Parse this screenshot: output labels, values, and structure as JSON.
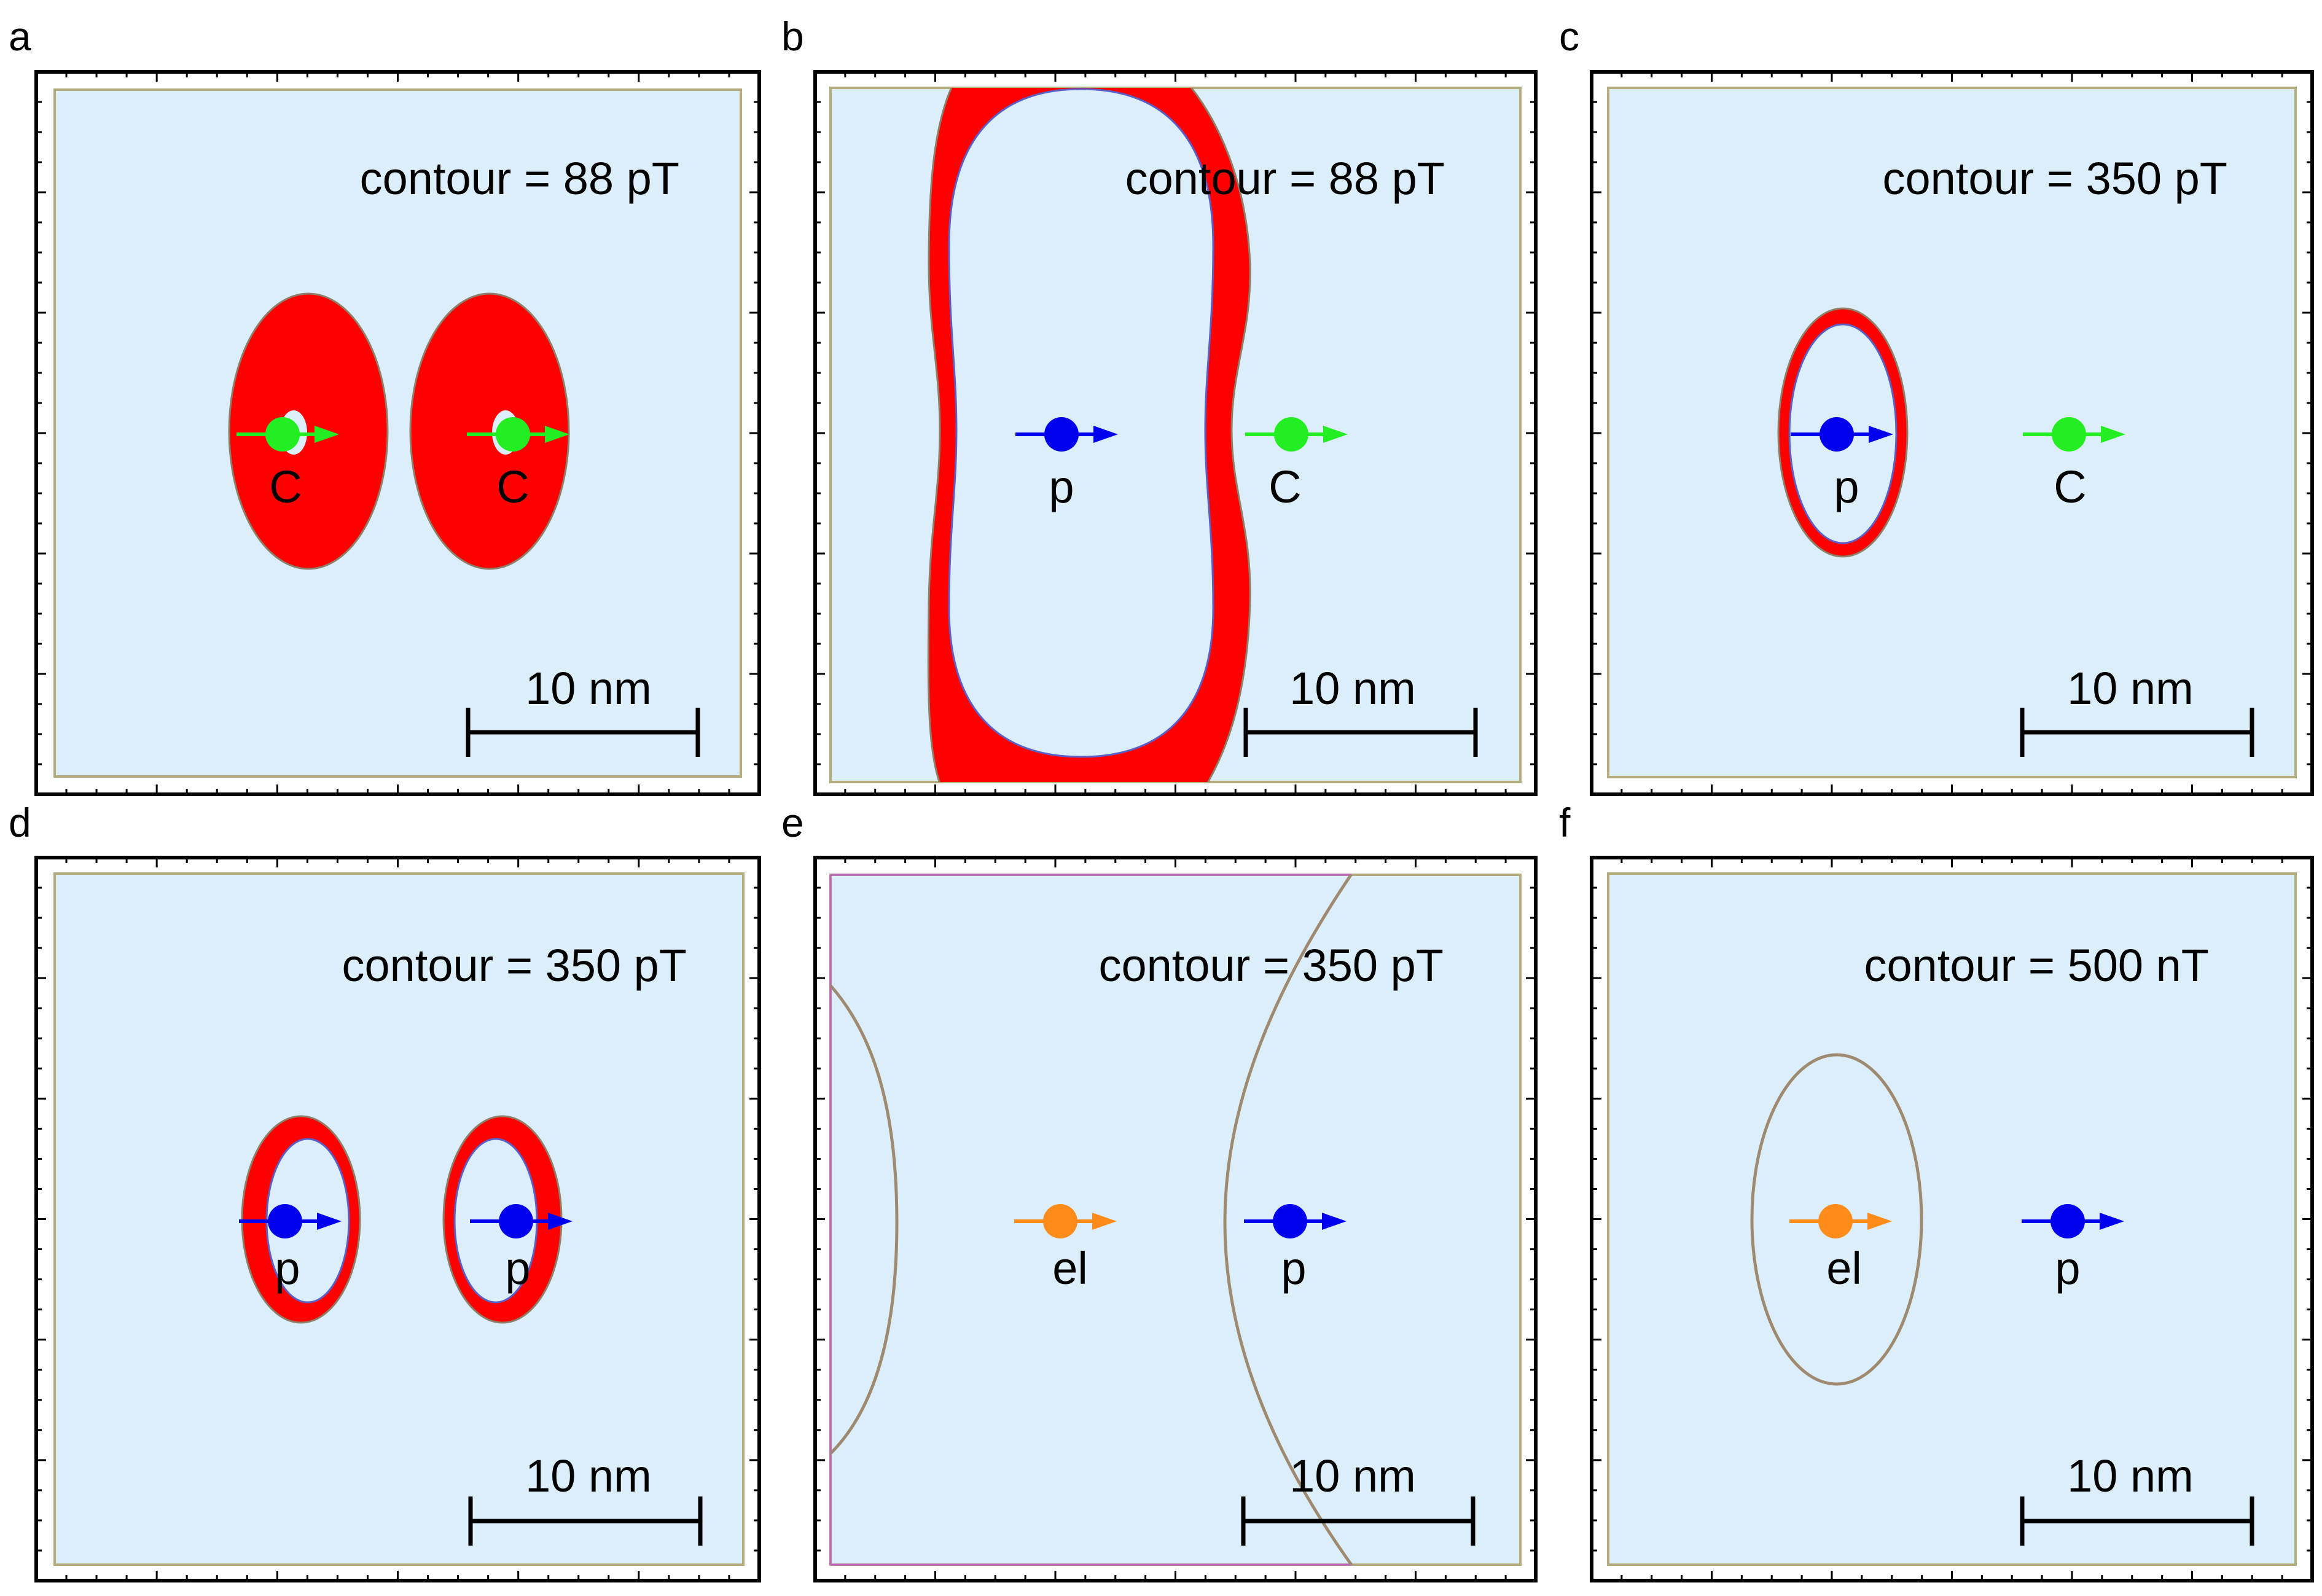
{
  "colors": {
    "background_field": "#ddeefb",
    "inner_frame": "#b4ac7c",
    "region_fill": "#ff0000",
    "region_edge": "#8f7e6a",
    "contour_line": "#9e8a70",
    "carbon": "#22ee22",
    "proton": "#0000ee",
    "electron": "#ff8c1a"
  },
  "panels": [
    {
      "label": "a",
      "contour_text": "contour = 88 pT",
      "scale_text": "10 nm",
      "particles": [
        {
          "name": "C",
          "type": "carbon"
        },
        {
          "name": "C",
          "type": "carbon"
        }
      ]
    },
    {
      "label": "b",
      "contour_text": "contour = 88 pT",
      "scale_text": "10 nm",
      "particles": [
        {
          "name": "p",
          "type": "proton"
        },
        {
          "name": "C",
          "type": "carbon"
        }
      ]
    },
    {
      "label": "c",
      "contour_text": "contour = 350 pT",
      "scale_text": "10 nm",
      "particles": [
        {
          "name": "p",
          "type": "proton"
        },
        {
          "name": "C",
          "type": "carbon"
        }
      ]
    },
    {
      "label": "d",
      "contour_text": "contour = 350 pT",
      "scale_text": "10 nm",
      "particles": [
        {
          "name": "p",
          "type": "proton"
        },
        {
          "name": "p",
          "type": "proton"
        }
      ]
    },
    {
      "label": "e",
      "contour_text": "contour = 350 pT",
      "scale_text": "10 nm",
      "particles": [
        {
          "name": "el",
          "type": "electron"
        },
        {
          "name": "p",
          "type": "proton"
        }
      ]
    },
    {
      "label": "f",
      "contour_text": "contour = 500 nT",
      "scale_text": "10 nm",
      "particles": [
        {
          "name": "el",
          "type": "electron"
        },
        {
          "name": "p",
          "type": "proton"
        }
      ]
    }
  ]
}
